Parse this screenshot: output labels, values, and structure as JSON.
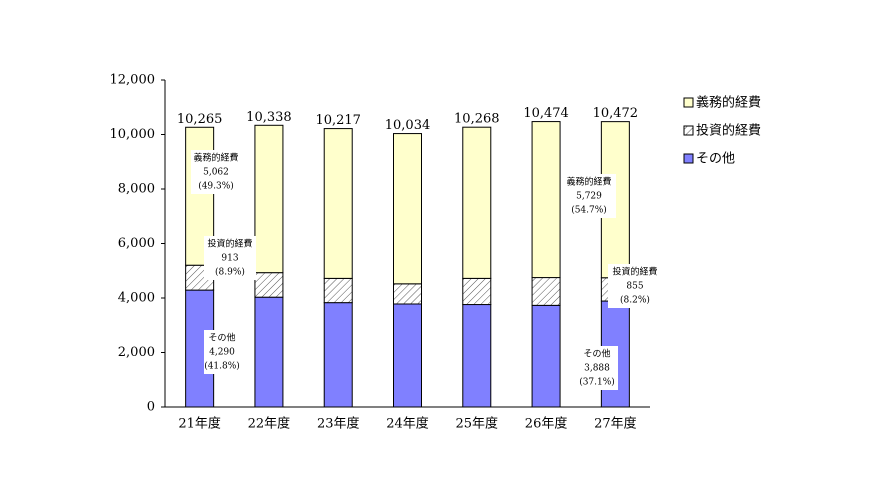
{
  "chart_data": {
    "type": "stacked-bar",
    "categories": [
      "21年度",
      "22年度",
      "23年度",
      "24年度",
      "25年度",
      "26年度",
      "27年度"
    ],
    "series": [
      {
        "name": "その他",
        "color": "#8080ff",
        "values": [
          4290,
          4030,
          3830,
          3780,
          3760,
          3730,
          3888
        ]
      },
      {
        "name": "投資的経費",
        "color": "#ffffff",
        "hatch": true,
        "values": [
          913,
          900,
          890,
          740,
          960,
          1020,
          855
        ]
      },
      {
        "name": "義務的経費",
        "color": "#ffffcc",
        "values": [
          5062,
          5408,
          5497,
          5514,
          5548,
          5724,
          5729
        ]
      }
    ],
    "totals": {
      "values": [
        10265,
        10338,
        10217,
        10034,
        10268,
        10474,
        10472
      ],
      "value_labels": [
        "10,265",
        "10,338",
        "10,217",
        "10,034",
        "10,268",
        "10,474",
        "10,472"
      ]
    },
    "annotations": [
      {
        "lines": [
          "義務的経費",
          "5,062",
          "(49.3%)"
        ]
      },
      {
        "lines": [
          "投資的経費",
          "913",
          "(8.9%)"
        ]
      },
      {
        "lines": [
          "その他",
          "4,290",
          "(41.8%)"
        ]
      },
      {
        "lines": [
          "義務的経費",
          "5,729",
          "(54.7%)"
        ]
      },
      {
        "lines": [
          "投資的経費",
          "855",
          "(8.2%)"
        ]
      },
      {
        "lines": [
          "その他",
          "3,888",
          "(37.1%)"
        ]
      }
    ],
    "ylim": [
      0,
      12000
    ],
    "yticks": [
      0,
      {
        "value": 2000,
        "label": "2,000"
      },
      {
        "value": 4000,
        "label": "4,000"
      },
      {
        "value": 6000,
        "label": "6,000"
      },
      {
        "value": 8000,
        "label": "8,000"
      },
      {
        "value": 10000,
        "label": "10,000"
      },
      {
        "value": 12000,
        "label": "12,000"
      }
    ],
    "legend": "right"
  }
}
